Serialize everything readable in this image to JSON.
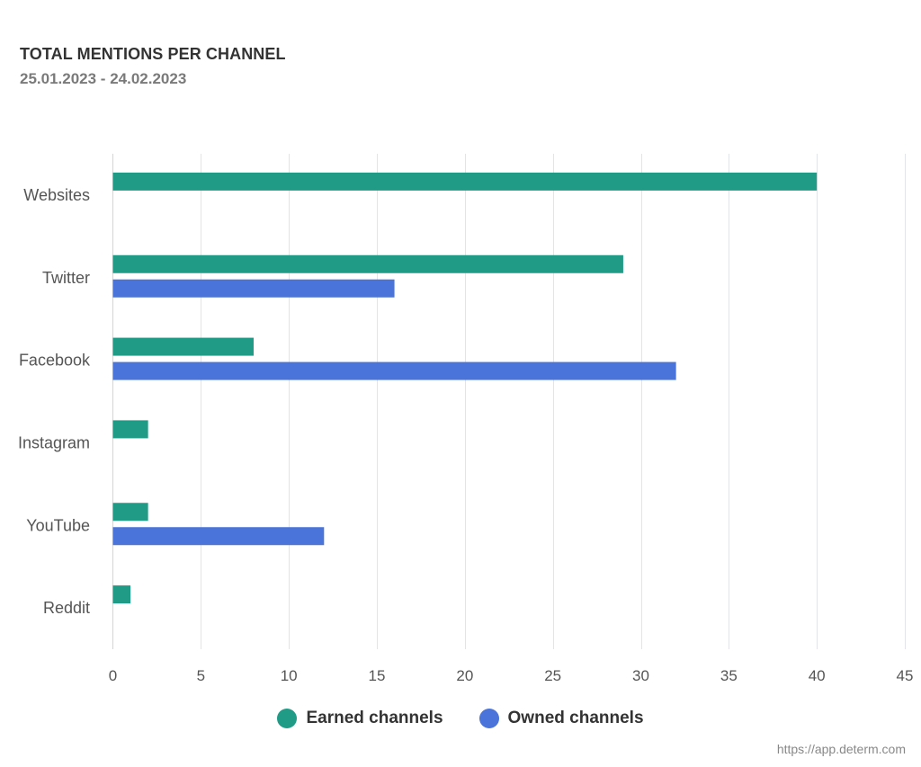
{
  "title": "TOTAL MENTIONS PER CHANNEL",
  "subtitle": "25.01.2023 - 24.02.2023",
  "credits": "https://app.determ.com",
  "colors": {
    "earned": "#1f9b86",
    "owned": "#4a74d9",
    "grid": "#e1e4ea",
    "axis": "#ccd6eb"
  },
  "chart_data": {
    "type": "bar",
    "orientation": "horizontal",
    "categories": [
      "Websites",
      "Twitter",
      "Facebook",
      "Instagram",
      "YouTube",
      "Reddit"
    ],
    "series": [
      {
        "name": "Earned channels",
        "values": [
          40,
          29,
          8,
          2,
          2,
          1
        ]
      },
      {
        "name": "Owned channels",
        "values": [
          0,
          16,
          32,
          0,
          12,
          0
        ]
      }
    ],
    "xlim": [
      0,
      45
    ],
    "xticks": [
      "0",
      "5",
      "10",
      "15",
      "20",
      "25",
      "30",
      "35",
      "40",
      "45"
    ],
    "grid": true,
    "legend_position": "bottom-center"
  }
}
